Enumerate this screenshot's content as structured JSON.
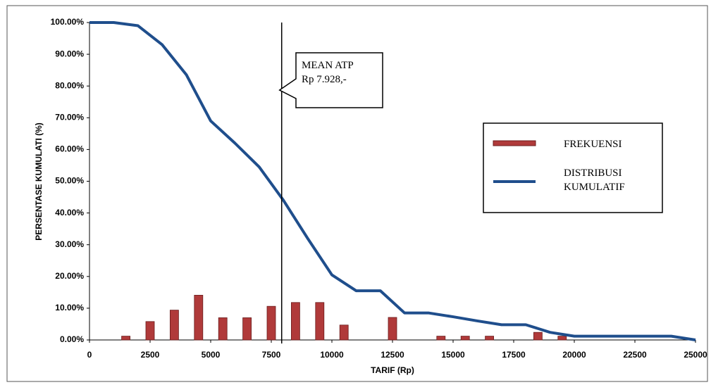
{
  "chart_data": {
    "type": "combo",
    "xlabel": "TARIF (Rp)",
    "ylabel": "PERSENTASE KUMULATI (%)",
    "xlim": [
      0,
      25000
    ],
    "xticks": [
      0,
      2500,
      5000,
      7500,
      10000,
      12500,
      15000,
      17500,
      20000,
      22500,
      25000
    ],
    "ylim": [
      0,
      100
    ],
    "yticks": [
      {
        "value": 0,
        "label": "0.00%"
      },
      {
        "value": 10,
        "label": "10.00%"
      },
      {
        "value": 20,
        "label": "20.00%"
      },
      {
        "value": 30,
        "label": "30.00%"
      },
      {
        "value": 40,
        "label": "40.00%"
      },
      {
        "value": 50,
        "label": "50.00%"
      },
      {
        "value": 60,
        "label": "60.00%"
      },
      {
        "value": 70,
        "label": "70.00%"
      },
      {
        "value": 80,
        "label": "80.00%"
      },
      {
        "value": 90,
        "label": "90.00%"
      },
      {
        "value": 100,
        "label": "100.00%"
      }
    ],
    "series": [
      {
        "name": "FREKUENSI",
        "type": "bar",
        "color": "#b03a3a",
        "x": [
          1500,
          2500,
          3500,
          4500,
          5500,
          6500,
          7500,
          8500,
          9500,
          10500,
          12500,
          14500,
          15500,
          16500,
          18500,
          19500
        ],
        "values": [
          1.2,
          5.8,
          9.4,
          14.1,
          7.0,
          7.0,
          10.6,
          11.8,
          11.8,
          4.7,
          7.1,
          1.2,
          1.2,
          1.2,
          2.4,
          1.2
        ]
      },
      {
        "name": "DISTRIBUSI KUMULATIF",
        "type": "line",
        "color": "#1f4e8c",
        "x": [
          0,
          1000,
          2000,
          3000,
          4000,
          5000,
          6000,
          7000,
          8000,
          9000,
          10000,
          11000,
          12000,
          13000,
          14000,
          15000,
          16000,
          17000,
          18000,
          19000,
          20000,
          21000,
          22000,
          23000,
          24000,
          25000
        ],
        "values": [
          100,
          100,
          99,
          93,
          83.5,
          69,
          62,
          54.5,
          44,
          32,
          20.5,
          15.5,
          15.5,
          8.5,
          8.5,
          7.3,
          6,
          4.8,
          4.8,
          2.4,
          1.2,
          1.2,
          1.2,
          1.2,
          1.2,
          0
        ]
      }
    ],
    "annotation": {
      "x": 7928,
      "lines": [
        "MEAN ATP",
        "Rp 7.928,-"
      ]
    }
  }
}
